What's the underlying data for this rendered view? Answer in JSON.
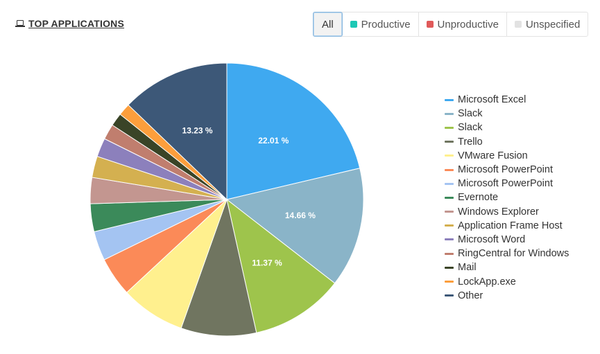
{
  "header": {
    "title": "TOP APPLICATIONS",
    "icon": "laptop-icon"
  },
  "filters": [
    {
      "label": "All",
      "active": true,
      "color": ""
    },
    {
      "label": "Productive",
      "active": false,
      "color": "#1dc8b5"
    },
    {
      "label": "Unproductive",
      "active": false,
      "color": "#e05a5a"
    },
    {
      "label": "Unspecified",
      "active": false,
      "color": "#e2e2e2"
    }
  ],
  "chart_data": {
    "type": "pie",
    "title": "",
    "legend_position": "right",
    "labels": [
      "Microsoft Excel",
      "Slack",
      "Slack",
      "Trello",
      "VMware Fusion",
      "Microsoft PowerPoint",
      "Microsoft PowerPoint",
      "Evernote",
      "Windows Explorer",
      "Application Frame Host",
      "Microsoft Word",
      "RingCentral for Windows",
      "Mail",
      "LockApp.exe",
      "Other"
    ],
    "values": [
      22.01,
      14.66,
      11.37,
      9.2,
      7.9,
      4.8,
      3.6,
      3.4,
      3.2,
      2.6,
      2.3,
      1.9,
      1.6,
      1.5,
      13.23
    ],
    "value_labels": [
      "22.01 %",
      "14.66 %",
      "11.37 %",
      "",
      "",
      "",
      "",
      "",
      "",
      "",
      "",
      "",
      "",
      "",
      "13.23 %"
    ],
    "colors": [
      "#3fa9f0",
      "#8ab4c8",
      "#9ec44c",
      "#707560",
      "#fff08e",
      "#fb8a58",
      "#a4c4f2",
      "#3b8a5a",
      "#c39690",
      "#d4b050",
      "#8c80bc",
      "#c07e6e",
      "#3a4427",
      "#fc9e3c",
      "#3d5878"
    ]
  }
}
